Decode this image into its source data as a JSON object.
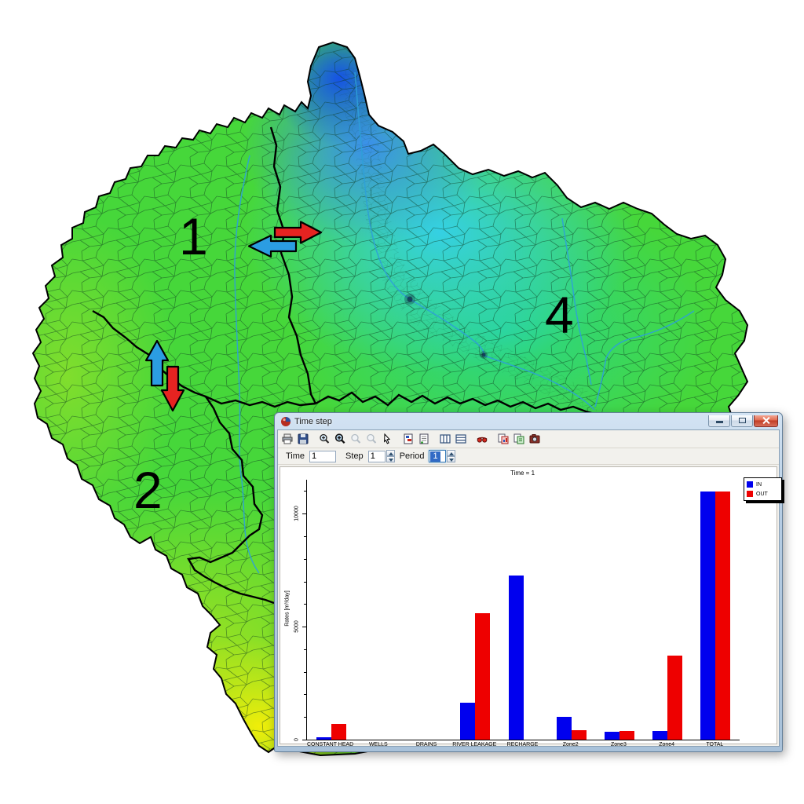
{
  "window": {
    "title": "Time step",
    "caption_buttons": [
      "minimize",
      "restore",
      "close"
    ],
    "toolbar_icons": [
      "print",
      "save",
      "zoom-in",
      "zoom-window",
      "zoom-out-disabled",
      "zoom-full-disabled",
      "select-cursor",
      "format-properties",
      "report",
      "table-columns",
      "table-rows",
      "goggles",
      "copy-chart",
      "copy-data",
      "capture"
    ],
    "fields": {
      "time_label": "Time",
      "time_value": "1",
      "step_label": "Step",
      "step_value": "1",
      "period_label": "Period",
      "period_value": "1"
    }
  },
  "chart_data": {
    "type": "bar",
    "title": "Time = 1",
    "ylabel": "Rates [m³/day]",
    "categories": [
      "CONSTANT HEAD",
      "WELLS",
      "DRAINS",
      "RIVER LEAKAGE",
      "RECHARGE",
      "Zone2",
      "Zone3",
      "Zone4",
      "TOTAL"
    ],
    "series": [
      {
        "name": "IN",
        "color": "#0000ee",
        "values": [
          90,
          0,
          0,
          1650,
          7250,
          1010,
          340,
          400,
          10980
        ]
      },
      {
        "name": "OUT",
        "color": "#ee0000",
        "values": [
          690,
          0,
          0,
          5600,
          0,
          430,
          370,
          3720,
          10980
        ]
      }
    ],
    "ylim": [
      0,
      11500
    ],
    "yticks": [
      0,
      5000,
      10000
    ],
    "minor_tick": 1000,
    "legend_position": "top-right",
    "grid": false
  },
  "map": {
    "zone_labels": [
      "1",
      "2",
      "4"
    ],
    "arrows": [
      {
        "name": "flow-right",
        "direction": "right",
        "color": "#e62321"
      },
      {
        "name": "flow-left",
        "direction": "left",
        "color": "#2b9de2"
      },
      {
        "name": "flow-up",
        "direction": "up",
        "color": "#2b9de2"
      },
      {
        "name": "flow-down",
        "direction": "down",
        "color": "#e62321"
      }
    ],
    "colors": {
      "head_high": "#1450e0",
      "head_mid_cyan": "#38d4e8",
      "head_green": "#46d73a",
      "head_low_yellow": "#f0ee10",
      "river": "#2da0d8",
      "zone_boundary": "#000000"
    }
  }
}
